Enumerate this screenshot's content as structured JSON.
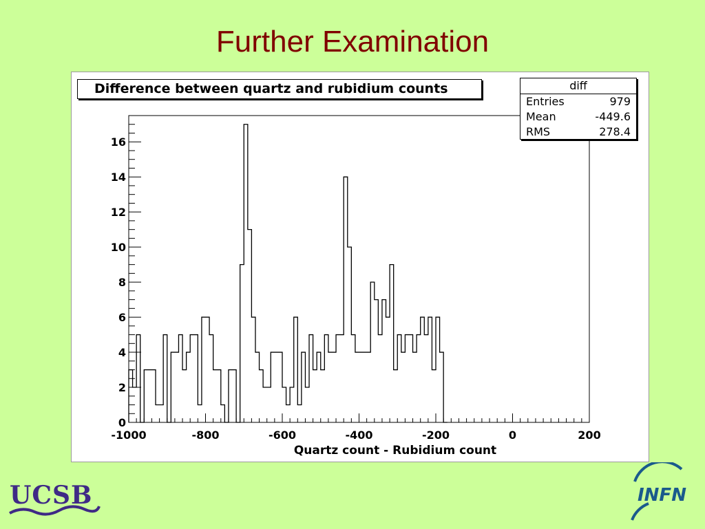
{
  "slide": {
    "title": "Further Examination"
  },
  "histogram": {
    "title": "Difference between quartz and rubidium counts",
    "stats": {
      "name": "diff",
      "entries_label": "Entries",
      "entries_value": "979",
      "mean_label": "Mean",
      "mean_value": "-449.6",
      "rms_label": "RMS",
      "rms_value": "278.4"
    }
  },
  "chart_data": {
    "type": "bar",
    "title": "Difference between quartz and rubidium counts",
    "xlabel": "Quartz count - Rubidium count",
    "ylabel": "",
    "xlim": [
      -1000,
      200
    ],
    "ylim": [
      0,
      17.5
    ],
    "bin_width": 10,
    "bin_start": -1000,
    "values": [
      3,
      2,
      5,
      0,
      3,
      3,
      3,
      1,
      1,
      5,
      0,
      4,
      4,
      5,
      3,
      4,
      5,
      5,
      1,
      6,
      6,
      5,
      3,
      3,
      1,
      0,
      3,
      3,
      0,
      9,
      17,
      11,
      6,
      4,
      3,
      2,
      2,
      4,
      4,
      4,
      2,
      1,
      2,
      6,
      1,
      4,
      2,
      5,
      3,
      4,
      3,
      5,
      4,
      4,
      5,
      5,
      14,
      10,
      5,
      4,
      4,
      4,
      4,
      8,
      7,
      5,
      7,
      6,
      9,
      3,
      5,
      4,
      5,
      5,
      4,
      5,
      6,
      5,
      6,
      3,
      6,
      4,
      0
    ],
    "x_ticks": [
      "-1000",
      "-800",
      "-600",
      "-400",
      "-200",
      "0",
      "200"
    ],
    "x_tick_values": [
      -1000,
      -800,
      -600,
      -400,
      -200,
      0,
      200
    ],
    "y_ticks": [
      "0",
      "2",
      "4",
      "6",
      "8",
      "10",
      "12",
      "14",
      "16"
    ],
    "y_tick_values": [
      0,
      2,
      4,
      6,
      8,
      10,
      12,
      14,
      16
    ],
    "grid": false,
    "legend": "top-right"
  },
  "logos": {
    "left": "UCSB",
    "right": "INFN"
  },
  "colors": {
    "background": "#ccff99",
    "title": "#800000",
    "ucsb": "#3f2a86",
    "infn": "#1a5a8c",
    "infn_accent": "#00a8b5"
  }
}
